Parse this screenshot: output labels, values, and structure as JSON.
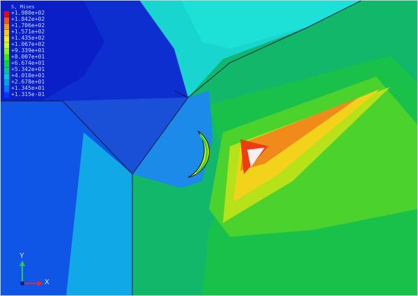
{
  "legend": {
    "title": "S, Mises",
    "colors": [
      "#ff0000",
      "#ff5500",
      "#ff9900",
      "#ffcc00",
      "#ffee00",
      "#ccff00",
      "#88ff00",
      "#33ee00",
      "#00dd33",
      "#00cc88",
      "#00cccc",
      "#00a5e0",
      "#0077ff",
      "#0033ff"
    ],
    "labels": [
      "+1.980e+02",
      "+1.842e+02",
      "+1.706e+02",
      "+1.571e+02",
      "+1.435e+02",
      "+1.067e+02",
      "+9.339e+01",
      "+8.007e+01",
      "+6.674e+01",
      "+5.342e+01",
      "+4.010e+01",
      "+2.678e+01",
      "+1.345e+01",
      "+1.315e-01"
    ]
  },
  "triad": {
    "y_label": "Y",
    "x_label": "X"
  }
}
